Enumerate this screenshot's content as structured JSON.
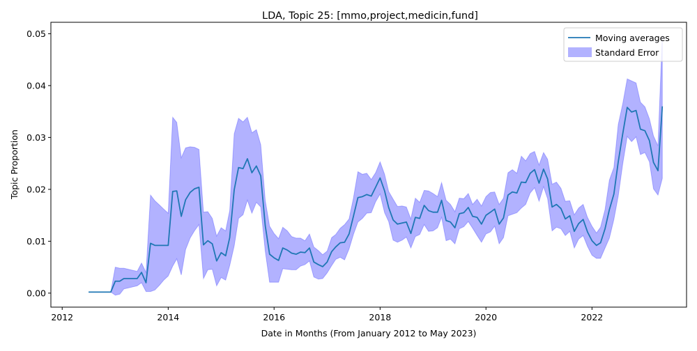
{
  "chart_data": {
    "type": "line",
    "title": "LDA, Topic 25: [mmo,project,medicin,fund]",
    "xlabel": "Date in Months (From January 2012 to May 2023)",
    "ylabel": "Topic Proportion",
    "xlim": [
      "2011-10-15",
      "2023-10-15"
    ],
    "ylim": [
      -0.0027,
      0.0522
    ],
    "xticks": [
      {
        "value": "2012-01-01",
        "label": "2012"
      },
      {
        "value": "2014-01-01",
        "label": "2014"
      },
      {
        "value": "2016-01-01",
        "label": "2016"
      },
      {
        "value": "2018-01-01",
        "label": "2018"
      },
      {
        "value": "2020-01-01",
        "label": "2020"
      },
      {
        "value": "2022-01-01",
        "label": "2022"
      }
    ],
    "yticks": [
      {
        "value": 0.0,
        "label": "0.00"
      },
      {
        "value": 0.01,
        "label": "0.01"
      },
      {
        "value": 0.02,
        "label": "0.02"
      },
      {
        "value": 0.03,
        "label": "0.03"
      },
      {
        "value": 0.04,
        "label": "0.04"
      },
      {
        "value": 0.05,
        "label": "0.05"
      }
    ],
    "grid": false,
    "legend_position": "top-right",
    "x": [
      "2012-07",
      "2012-08",
      "2012-09",
      "2012-10",
      "2012-11",
      "2012-12",
      "2013-01",
      "2013-02",
      "2013-03",
      "2013-04",
      "2013-05",
      "2013-06",
      "2013-07",
      "2013-08",
      "2013-09",
      "2013-10",
      "2013-11",
      "2013-12",
      "2014-01",
      "2014-02",
      "2014-03",
      "2014-04",
      "2014-05",
      "2014-06",
      "2014-07",
      "2014-08",
      "2014-09",
      "2014-10",
      "2014-11",
      "2014-12",
      "2015-01",
      "2015-02",
      "2015-03",
      "2015-04",
      "2015-05",
      "2015-06",
      "2015-07",
      "2015-08",
      "2015-09",
      "2015-10",
      "2015-11",
      "2015-12",
      "2016-01",
      "2016-02",
      "2016-03",
      "2016-04",
      "2016-05",
      "2016-06",
      "2016-07",
      "2016-08",
      "2016-09",
      "2016-10",
      "2016-11",
      "2016-12",
      "2017-01",
      "2017-02",
      "2017-03",
      "2017-04",
      "2017-05",
      "2017-06",
      "2017-07",
      "2017-08",
      "2017-09",
      "2017-10",
      "2017-11",
      "2017-12",
      "2018-01",
      "2018-02",
      "2018-03",
      "2018-04",
      "2018-05",
      "2018-06",
      "2018-07",
      "2018-08",
      "2018-09",
      "2018-10",
      "2018-11",
      "2018-12",
      "2019-01",
      "2019-02",
      "2019-03",
      "2019-04",
      "2019-05",
      "2019-06",
      "2019-07",
      "2019-08",
      "2019-09",
      "2019-10",
      "2019-11",
      "2019-12",
      "2020-01",
      "2020-02",
      "2020-03",
      "2020-04",
      "2020-05",
      "2020-06",
      "2020-07",
      "2020-08",
      "2020-09",
      "2020-10",
      "2020-11",
      "2020-12",
      "2021-01",
      "2021-02",
      "2021-03",
      "2021-04",
      "2021-05",
      "2021-06",
      "2021-07",
      "2021-08",
      "2021-09",
      "2021-10",
      "2021-11",
      "2021-12",
      "2022-01",
      "2022-02",
      "2022-03",
      "2022-04",
      "2022-05",
      "2022-06",
      "2022-07",
      "2022-08",
      "2022-09",
      "2022-10",
      "2022-11",
      "2022-12",
      "2023-01",
      "2023-02",
      "2023-03",
      "2023-04",
      "2023-05"
    ],
    "series": [
      {
        "name": "Moving averages",
        "color": "#1f77b4",
        "values": [
          0.0002,
          0.0002,
          0.0002,
          0.0002,
          0.0002,
          0.0002,
          0.0023,
          0.0023,
          0.0028,
          0.0028,
          0.0028,
          0.0028,
          0.004,
          0.002,
          0.0096,
          0.0092,
          0.0092,
          0.0092,
          0.0092,
          0.0196,
          0.0197,
          0.0148,
          0.018,
          0.0194,
          0.0201,
          0.0204,
          0.0093,
          0.0101,
          0.0095,
          0.0062,
          0.0078,
          0.0072,
          0.0107,
          0.0199,
          0.0242,
          0.024,
          0.0259,
          0.0232,
          0.0245,
          0.0226,
          0.013,
          0.0075,
          0.0068,
          0.0063,
          0.0087,
          0.0083,
          0.0077,
          0.0075,
          0.0079,
          0.0078,
          0.0087,
          0.006,
          0.0055,
          0.0051,
          0.006,
          0.008,
          0.0089,
          0.0097,
          0.0098,
          0.0114,
          0.0148,
          0.0184,
          0.0186,
          0.019,
          0.0187,
          0.0204,
          0.0222,
          0.0197,
          0.0165,
          0.0141,
          0.0133,
          0.0135,
          0.0137,
          0.0115,
          0.0146,
          0.0144,
          0.0169,
          0.0159,
          0.0156,
          0.0156,
          0.0179,
          0.014,
          0.0137,
          0.0126,
          0.0153,
          0.0155,
          0.0165,
          0.0148,
          0.0146,
          0.0133,
          0.015,
          0.0156,
          0.0162,
          0.0133,
          0.0145,
          0.0189,
          0.0195,
          0.0193,
          0.0214,
          0.0213,
          0.0231,
          0.0238,
          0.0212,
          0.0239,
          0.022,
          0.0166,
          0.0171,
          0.0163,
          0.0143,
          0.0149,
          0.0119,
          0.0134,
          0.0142,
          0.0118,
          0.0101,
          0.0092,
          0.0097,
          0.0124,
          0.0161,
          0.0191,
          0.0253,
          0.0307,
          0.0358,
          0.0349,
          0.0352,
          0.0316,
          0.0313,
          0.0294,
          0.0252,
          0.0236,
          0.036
        ]
      }
    ],
    "bands": [
      {
        "name": "Standard Error",
        "color": "#0000ff",
        "opacity": 0.3,
        "lower": [
          0.0002,
          0.0002,
          0.0002,
          0.0002,
          0.0002,
          0.0002,
          -0.0004,
          -0.0002,
          0.0008,
          0.001,
          0.0012,
          0.0014,
          0.002,
          0.0003,
          0.0003,
          0.0006,
          0.0015,
          0.0025,
          0.0033,
          0.0052,
          0.0066,
          0.0035,
          0.0084,
          0.0106,
          0.012,
          0.0132,
          0.0028,
          0.0045,
          0.0046,
          0.0014,
          0.003,
          0.0025,
          0.0053,
          0.0091,
          0.0144,
          0.0151,
          0.0179,
          0.0154,
          0.0175,
          0.0166,
          0.0081,
          0.0021,
          0.0021,
          0.0021,
          0.0047,
          0.0046,
          0.0045,
          0.0045,
          0.0052,
          0.0055,
          0.0062,
          0.0031,
          0.0027,
          0.0028,
          0.0039,
          0.0053,
          0.0065,
          0.0069,
          0.0064,
          0.0085,
          0.0113,
          0.0137,
          0.0144,
          0.0154,
          0.0155,
          0.0176,
          0.0191,
          0.0155,
          0.0138,
          0.0102,
          0.0098,
          0.0102,
          0.0108,
          0.0087,
          0.0109,
          0.0113,
          0.0132,
          0.0119,
          0.012,
          0.0126,
          0.0146,
          0.0101,
          0.0104,
          0.0095,
          0.0124,
          0.0128,
          0.0138,
          0.0125,
          0.0111,
          0.0098,
          0.0114,
          0.0118,
          0.0129,
          0.0095,
          0.0107,
          0.0149,
          0.0152,
          0.0155,
          0.0164,
          0.0171,
          0.0193,
          0.0203,
          0.0177,
          0.0205,
          0.0182,
          0.012,
          0.0127,
          0.0124,
          0.0111,
          0.0119,
          0.0087,
          0.0104,
          0.0111,
          0.009,
          0.0073,
          0.0067,
          0.0067,
          0.0087,
          0.0106,
          0.0142,
          0.0187,
          0.0249,
          0.0302,
          0.0292,
          0.0301,
          0.0267,
          0.0271,
          0.0253,
          0.0201,
          0.0189,
          0.0221
        ],
        "upper": [
          0.0002,
          0.0002,
          0.0002,
          0.0002,
          0.0002,
          0.0002,
          0.005,
          0.0048,
          0.0048,
          0.0046,
          0.0044,
          0.0042,
          0.0058,
          0.004,
          0.0189,
          0.0178,
          0.017,
          0.0162,
          0.0154,
          0.0339,
          0.0329,
          0.0261,
          0.028,
          0.0282,
          0.0281,
          0.0277,
          0.0156,
          0.0157,
          0.0144,
          0.011,
          0.0126,
          0.012,
          0.0159,
          0.0307,
          0.0337,
          0.033,
          0.0339,
          0.0309,
          0.0315,
          0.0286,
          0.0179,
          0.0129,
          0.0115,
          0.0105,
          0.0127,
          0.012,
          0.0109,
          0.0106,
          0.0106,
          0.0101,
          0.0114,
          0.0089,
          0.0082,
          0.0074,
          0.0081,
          0.0107,
          0.0113,
          0.0125,
          0.0132,
          0.0143,
          0.0183,
          0.0234,
          0.0229,
          0.0231,
          0.0219,
          0.0232,
          0.0253,
          0.0229,
          0.0196,
          0.0181,
          0.0167,
          0.0168,
          0.0166,
          0.0143,
          0.0183,
          0.0175,
          0.0198,
          0.0197,
          0.0192,
          0.0186,
          0.0213,
          0.0179,
          0.0171,
          0.0157,
          0.0183,
          0.0182,
          0.0192,
          0.0171,
          0.0181,
          0.0168,
          0.0186,
          0.0194,
          0.0195,
          0.0171,
          0.0183,
          0.0232,
          0.0238,
          0.0231,
          0.0264,
          0.0255,
          0.0269,
          0.0273,
          0.0247,
          0.0271,
          0.0258,
          0.021,
          0.0214,
          0.0202,
          0.0177,
          0.0178,
          0.0151,
          0.0164,
          0.0171,
          0.0146,
          0.0129,
          0.0116,
          0.0127,
          0.0161,
          0.0218,
          0.0242,
          0.0325,
          0.0365,
          0.0413,
          0.0409,
          0.0405,
          0.0368,
          0.0359,
          0.0336,
          0.0303,
          0.0284,
          0.0499
        ]
      }
    ]
  }
}
